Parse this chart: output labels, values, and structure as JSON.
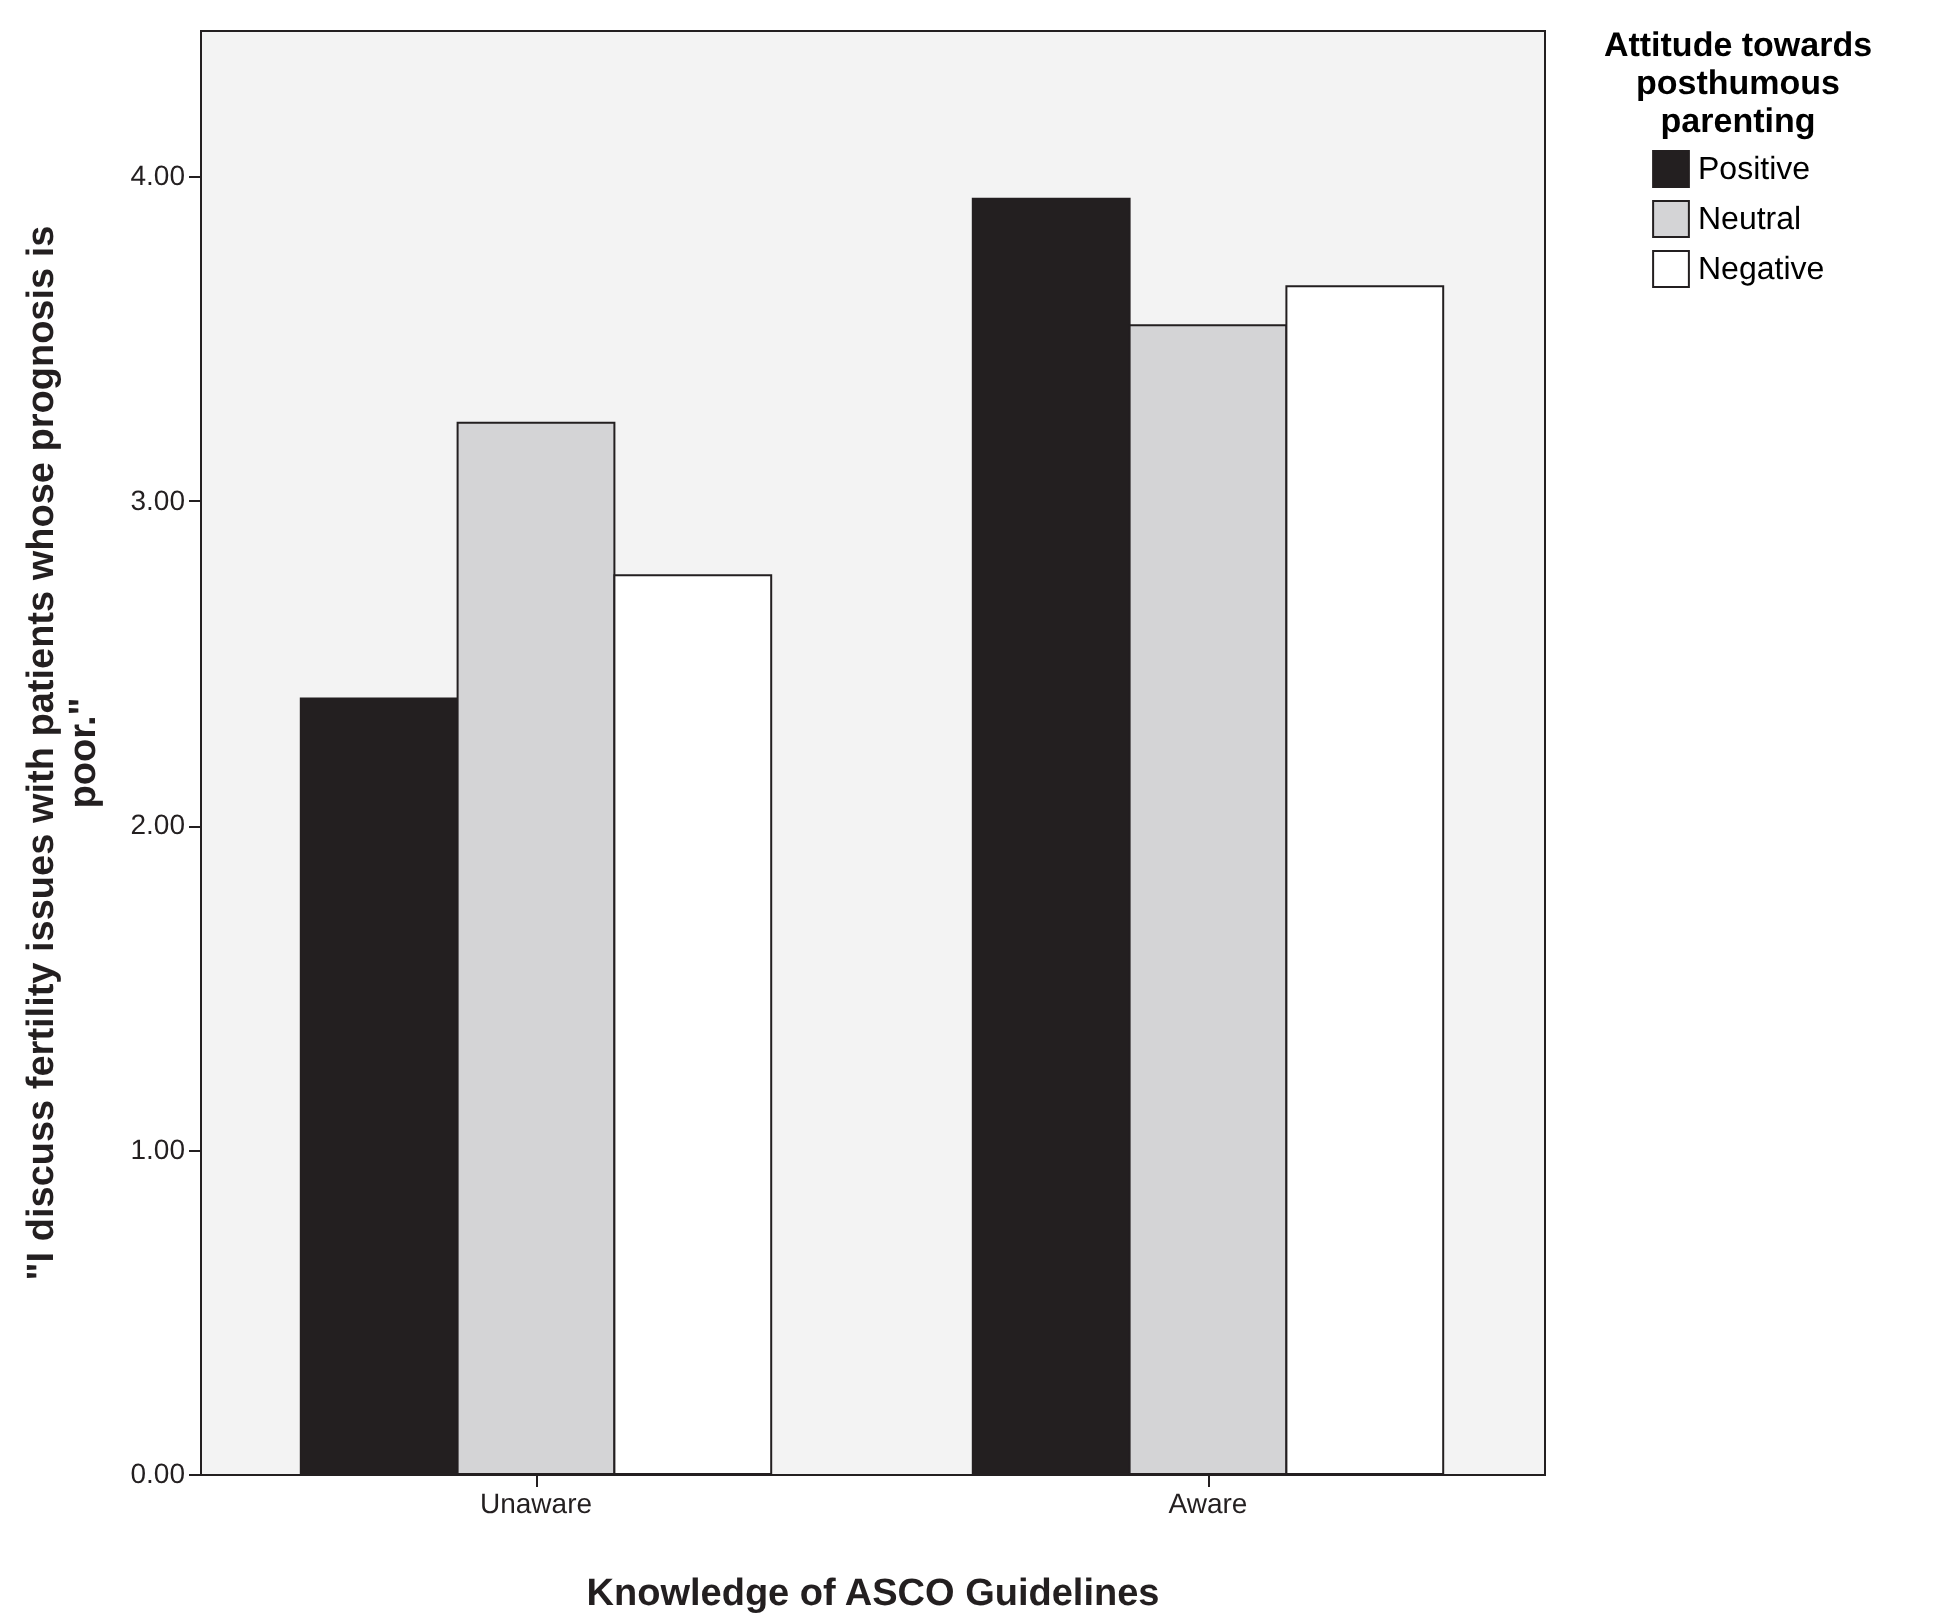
{
  "chart_data": {
    "type": "bar",
    "xlabel": "Knowledge of ASCO Guidelines",
    "ylabel": "\"I discuss fertility issues with patients whose prognosis is poor.\"",
    "legend_title": "Attitude towards posthumous parenting",
    "categories": [
      "Unaware",
      "Aware"
    ],
    "series": [
      {
        "name": "Positive",
        "color": "#231f20",
        "values": [
          2.39,
          3.93
        ]
      },
      {
        "name": "Neutral",
        "color": "#d4d4d6",
        "values": [
          3.24,
          3.54
        ]
      },
      {
        "name": "Negative",
        "color": "#ffffff",
        "values": [
          2.77,
          3.66
        ]
      }
    ],
    "ylim": [
      0,
      4.45
    ],
    "yticks": [
      {
        "value": 0,
        "label": "0.00"
      },
      {
        "value": 1,
        "label": "1.00"
      },
      {
        "value": 2,
        "label": "2.00"
      },
      {
        "value": 3,
        "label": "3.00"
      },
      {
        "value": 4,
        "label": "4.00"
      }
    ],
    "grid": false,
    "legend": "top right"
  }
}
